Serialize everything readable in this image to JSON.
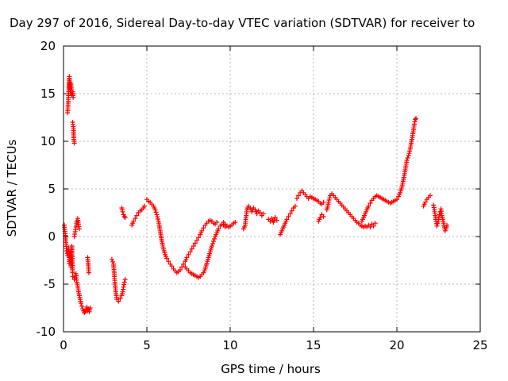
{
  "chart_data": {
    "type": "scatter",
    "title": "Day 297 of 2016, Sidereal Day-to-day VTEC variation (SDTVAR) for receiver to",
    "xlabel": "GPS time / hours",
    "ylabel": "SDTVAR / TECUs",
    "xlim": [
      0,
      25
    ],
    "ylim": [
      -10,
      20
    ],
    "x_ticks": [
      0,
      5,
      10,
      15,
      20,
      25
    ],
    "y_ticks": [
      -10,
      -5,
      0,
      5,
      10,
      15,
      20
    ],
    "grid": true,
    "marker": "+",
    "series_color": "#ff0000",
    "segments": [
      [
        [
          0.05,
          1.2
        ],
        [
          0.1,
          0.3
        ],
        [
          0.15,
          -0.8
        ],
        [
          0.2,
          -1.5
        ],
        [
          0.25,
          -2.0
        ],
        [
          0.3,
          -1.2
        ],
        [
          0.35,
          -2.8
        ],
        [
          0.4,
          -1.6
        ],
        [
          0.45,
          -3.2
        ],
        [
          0.5,
          -1.0
        ],
        [
          0.55,
          -3.8
        ]
      ],
      [
        [
          0.25,
          13.0
        ],
        [
          0.28,
          14.0
        ],
        [
          0.3,
          15.0
        ],
        [
          0.33,
          16.0
        ],
        [
          0.35,
          16.8
        ],
        [
          0.38,
          15.5
        ],
        [
          0.4,
          16.2
        ],
        [
          0.42,
          15.0
        ],
        [
          0.45,
          16.0
        ],
        [
          0.5,
          14.8
        ],
        [
          0.55,
          15.2
        ],
        [
          0.58,
          14.6
        ]
      ],
      [
        [
          0.55,
          12.0
        ],
        [
          0.6,
          11.3
        ],
        [
          0.62,
          10.2
        ],
        [
          0.65,
          9.8
        ]
      ],
      [
        [
          0.55,
          -4.2
        ],
        [
          0.65,
          -4.5
        ],
        [
          0.75,
          -3.9
        ],
        [
          0.8,
          -4.8
        ],
        [
          0.85,
          -5.2
        ],
        [
          0.9,
          -5.8
        ],
        [
          0.95,
          -6.2
        ],
        [
          1.0,
          -6.6
        ],
        [
          1.05,
          -7.0
        ],
        [
          1.1,
          -7.3
        ],
        [
          1.15,
          -7.6
        ],
        [
          1.2,
          -7.8
        ],
        [
          1.25,
          -8.0
        ],
        [
          1.3,
          -7.9
        ],
        [
          1.35,
          -7.7
        ],
        [
          1.4,
          -7.4
        ],
        [
          1.45,
          -7.8
        ],
        [
          1.5,
          -7.6
        ],
        [
          1.55,
          -7.9
        ],
        [
          1.6,
          -7.5
        ]
      ],
      [
        [
          0.65,
          0.0
        ],
        [
          0.7,
          0.5
        ],
        [
          0.75,
          1.0
        ],
        [
          0.8,
          1.6
        ],
        [
          0.85,
          1.9
        ],
        [
          0.9,
          1.3
        ],
        [
          0.95,
          0.8
        ]
      ],
      [
        [
          1.45,
          -2.2
        ],
        [
          1.5,
          -3.2
        ],
        [
          1.52,
          -3.8
        ]
      ],
      [
        [
          2.9,
          -2.4
        ],
        [
          3.0,
          -2.9
        ],
        [
          3.05,
          -4.0
        ],
        [
          3.1,
          -5.2
        ],
        [
          3.15,
          -6.0
        ],
        [
          3.2,
          -6.6
        ],
        [
          3.3,
          -6.8
        ],
        [
          3.4,
          -6.5
        ],
        [
          3.5,
          -6.2
        ],
        [
          3.55,
          -5.8
        ],
        [
          3.6,
          -5.3
        ],
        [
          3.65,
          -4.8
        ],
        [
          3.7,
          -4.5
        ]
      ],
      [
        [
          3.5,
          3.0
        ],
        [
          3.55,
          2.6
        ],
        [
          3.6,
          2.3
        ],
        [
          3.65,
          2.1
        ],
        [
          3.7,
          2.0
        ]
      ],
      [
        [
          4.1,
          1.2
        ],
        [
          4.2,
          1.6
        ],
        [
          4.3,
          1.9
        ],
        [
          4.4,
          2.2
        ],
        [
          4.5,
          2.5
        ],
        [
          4.6,
          2.7
        ],
        [
          4.7,
          2.8
        ],
        [
          4.8,
          3.0
        ],
        [
          4.85,
          3.2
        ]
      ],
      [
        [
          5.0,
          3.9
        ],
        [
          5.1,
          3.7
        ],
        [
          5.2,
          3.6
        ],
        [
          5.3,
          3.4
        ],
        [
          5.4,
          3.2
        ],
        [
          5.5,
          2.8
        ],
        [
          5.6,
          2.3
        ],
        [
          5.7,
          1.6
        ],
        [
          5.8,
          0.6
        ],
        [
          5.9,
          -0.5
        ],
        [
          6.0,
          -1.3
        ],
        [
          6.1,
          -1.9
        ],
        [
          6.2,
          -2.3
        ],
        [
          6.3,
          -2.6
        ],
        [
          6.4,
          -2.9
        ],
        [
          6.5,
          -3.1
        ],
        [
          6.6,
          -3.4
        ],
        [
          6.7,
          -3.6
        ],
        [
          6.8,
          -3.8
        ],
        [
          6.9,
          -3.7
        ],
        [
          7.0,
          -3.5
        ],
        [
          7.1,
          -3.2
        ],
        [
          7.2,
          -2.9
        ],
        [
          7.3,
          -2.6
        ],
        [
          7.4,
          -2.2
        ],
        [
          7.5,
          -1.9
        ],
        [
          7.6,
          -1.6
        ],
        [
          7.7,
          -1.3
        ],
        [
          7.8,
          -1.0
        ],
        [
          7.9,
          -0.7
        ],
        [
          8.0,
          -0.4
        ],
        [
          8.1,
          -0.1
        ],
        [
          8.2,
          0.2
        ],
        [
          8.3,
          0.6
        ],
        [
          8.4,
          0.9
        ],
        [
          8.5,
          1.2
        ],
        [
          8.6,
          1.4
        ],
        [
          8.7,
          1.6
        ],
        [
          8.8,
          1.7
        ],
        [
          8.9,
          1.6
        ],
        [
          9.0,
          1.4
        ],
        [
          9.1,
          1.3
        ],
        [
          9.2,
          1.5
        ]
      ],
      [
        [
          7.3,
          -3.2
        ],
        [
          7.4,
          -3.4
        ],
        [
          7.5,
          -3.6
        ],
        [
          7.6,
          -3.8
        ],
        [
          7.7,
          -3.9
        ],
        [
          7.8,
          -4.0
        ],
        [
          7.9,
          -4.1
        ],
        [
          8.0,
          -4.2
        ],
        [
          8.1,
          -4.3
        ],
        [
          8.2,
          -4.2
        ],
        [
          8.3,
          -4.0
        ],
        [
          8.4,
          -3.8
        ],
        [
          8.5,
          -3.4
        ],
        [
          8.6,
          -2.8
        ],
        [
          8.7,
          -2.2
        ],
        [
          8.8,
          -1.6
        ],
        [
          8.9,
          -1.0
        ],
        [
          9.0,
          -0.5
        ],
        [
          9.1,
          0.0
        ],
        [
          9.2,
          0.4
        ],
        [
          9.3,
          0.8
        ],
        [
          9.4,
          1.1
        ],
        [
          9.5,
          1.3
        ],
        [
          9.6,
          1.2
        ],
        [
          9.7,
          1.0
        ]
      ],
      [
        [
          9.6,
          1.5
        ],
        [
          9.7,
          1.3
        ],
        [
          9.8,
          1.1
        ],
        [
          9.9,
          1.0
        ],
        [
          10.0,
          1.1
        ],
        [
          10.1,
          1.2
        ],
        [
          10.2,
          1.4
        ],
        [
          10.3,
          1.5
        ]
      ],
      [
        [
          10.8,
          0.8
        ],
        [
          10.9,
          1.2
        ],
        [
          11.0,
          2.8
        ],
        [
          11.1,
          3.2
        ],
        [
          11.2,
          3.0
        ],
        [
          11.3,
          2.6
        ],
        [
          11.4,
          3.0
        ],
        [
          11.5,
          2.8
        ],
        [
          11.6,
          2.4
        ],
        [
          11.7,
          2.7
        ],
        [
          11.8,
          2.5
        ],
        [
          11.9,
          2.2
        ],
        [
          12.0,
          2.4
        ]
      ],
      [
        [
          12.3,
          1.8
        ],
        [
          12.4,
          1.6
        ],
        [
          12.5,
          1.9
        ],
        [
          12.6,
          1.5
        ],
        [
          12.7,
          2.0
        ],
        [
          12.8,
          1.7
        ]
      ],
      [
        [
          13.0,
          0.2
        ],
        [
          13.1,
          0.6
        ],
        [
          13.2,
          1.0
        ],
        [
          13.3,
          1.4
        ],
        [
          13.4,
          1.8
        ],
        [
          13.5,
          2.1
        ],
        [
          13.6,
          2.4
        ],
        [
          13.7,
          2.7
        ],
        [
          13.8,
          3.0
        ],
        [
          13.9,
          3.2
        ]
      ],
      [
        [
          14.0,
          4.0
        ],
        [
          14.1,
          4.3
        ],
        [
          14.2,
          4.6
        ],
        [
          14.3,
          4.8
        ],
        [
          14.4,
          4.6
        ],
        [
          14.5,
          4.4
        ],
        [
          14.6,
          4.2
        ],
        [
          14.7,
          4.0
        ],
        [
          14.8,
          4.2
        ],
        [
          14.9,
          4.1
        ],
        [
          15.0,
          4.0
        ],
        [
          15.1,
          3.9
        ],
        [
          15.2,
          3.8
        ],
        [
          15.3,
          3.7
        ],
        [
          15.4,
          3.5
        ],
        [
          15.5,
          3.4
        ],
        [
          15.6,
          3.6
        ]
      ],
      [
        [
          15.3,
          1.6
        ],
        [
          15.4,
          2.0
        ],
        [
          15.5,
          2.3
        ],
        [
          15.6,
          2.1
        ]
      ],
      [
        [
          15.8,
          2.8
        ],
        [
          15.9,
          3.6
        ],
        [
          16.0,
          4.3
        ],
        [
          16.1,
          4.5
        ],
        [
          16.2,
          4.3
        ],
        [
          16.3,
          4.1
        ],
        [
          16.4,
          3.9
        ],
        [
          16.5,
          3.7
        ],
        [
          16.6,
          3.5
        ],
        [
          16.7,
          3.3
        ],
        [
          16.8,
          3.1
        ],
        [
          16.9,
          2.9
        ],
        [
          17.0,
          2.7
        ],
        [
          17.1,
          2.5
        ],
        [
          17.2,
          2.3
        ],
        [
          17.3,
          2.1
        ],
        [
          17.4,
          1.9
        ],
        [
          17.5,
          1.7
        ],
        [
          17.6,
          1.5
        ],
        [
          17.7,
          1.4
        ],
        [
          17.8,
          1.2
        ],
        [
          17.9,
          1.1
        ],
        [
          18.0,
          1.0
        ],
        [
          18.1,
          1.1
        ],
        [
          18.2,
          1.0
        ],
        [
          18.3,
          1.2
        ],
        [
          18.4,
          1.0
        ],
        [
          18.5,
          1.3
        ],
        [
          18.6,
          1.1
        ],
        [
          18.7,
          1.4
        ]
      ],
      [
        [
          17.9,
          1.6
        ],
        [
          18.0,
          2.0
        ],
        [
          18.1,
          2.4
        ],
        [
          18.2,
          2.8
        ],
        [
          18.3,
          3.2
        ],
        [
          18.4,
          3.5
        ],
        [
          18.5,
          3.8
        ],
        [
          18.6,
          4.0
        ],
        [
          18.7,
          4.2
        ],
        [
          18.8,
          4.3
        ],
        [
          18.9,
          4.2
        ],
        [
          19.0,
          4.1
        ],
        [
          19.1,
          4.0
        ],
        [
          19.2,
          3.9
        ],
        [
          19.3,
          3.8
        ],
        [
          19.4,
          3.7
        ],
        [
          19.5,
          3.6
        ],
        [
          19.6,
          3.5
        ],
        [
          19.7,
          3.6
        ],
        [
          19.8,
          3.7
        ],
        [
          19.9,
          3.8
        ],
        [
          20.0,
          3.9
        ],
        [
          20.1,
          4.2
        ],
        [
          20.2,
          4.6
        ],
        [
          20.3,
          5.2
        ],
        [
          20.4,
          6.0
        ],
        [
          20.5,
          7.0
        ],
        [
          20.6,
          8.0
        ],
        [
          20.7,
          8.5
        ],
        [
          20.8,
          9.2
        ],
        [
          20.9,
          10.2
        ],
        [
          21.0,
          11.2
        ],
        [
          21.05,
          11.8
        ],
        [
          21.1,
          12.3
        ],
        [
          21.15,
          12.4
        ]
      ],
      [
        [
          21.6,
          3.2
        ],
        [
          21.7,
          3.6
        ],
        [
          21.8,
          3.9
        ],
        [
          21.9,
          4.1
        ],
        [
          22.0,
          4.3
        ]
      ],
      [
        [
          22.2,
          3.3
        ],
        [
          22.25,
          2.8
        ],
        [
          22.3,
          2.2
        ],
        [
          22.35,
          1.6
        ],
        [
          22.4,
          1.1
        ],
        [
          22.45,
          1.4
        ],
        [
          22.5,
          1.8
        ],
        [
          22.55,
          2.3
        ],
        [
          22.6,
          2.6
        ],
        [
          22.65,
          2.9
        ],
        [
          22.7,
          2.2
        ],
        [
          22.75,
          1.8
        ],
        [
          22.8,
          1.4
        ],
        [
          22.85,
          1.0
        ],
        [
          22.9,
          0.6
        ],
        [
          22.95,
          0.8
        ],
        [
          23.0,
          1.2
        ]
      ]
    ]
  }
}
